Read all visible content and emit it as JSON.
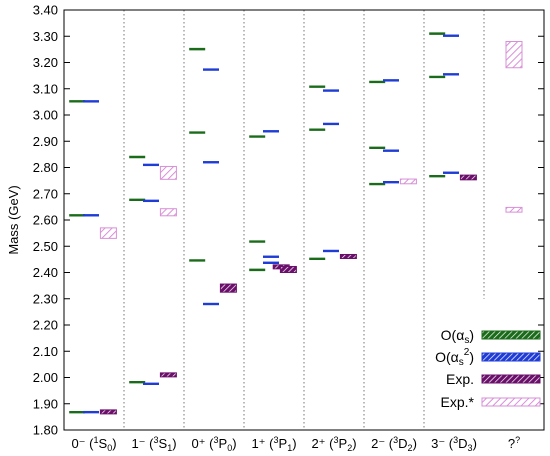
{
  "chart_data": {
    "type": "scatter",
    "ylabel": "Mass (GeV)",
    "ylim": [
      1.8,
      3.4
    ],
    "yticks": [
      "1.80",
      "1.90",
      "2.00",
      "2.10",
      "2.20",
      "2.30",
      "2.40",
      "2.50",
      "2.60",
      "2.70",
      "2.80",
      "2.90",
      "3.00",
      "3.10",
      "3.20",
      "3.30",
      "3.40"
    ],
    "categories": [
      {
        "parity": "0⁻",
        "pre": "(",
        "sup": "1",
        "letter": "S",
        "sub": "0",
        "post": ")"
      },
      {
        "parity": "1⁻",
        "pre": "(",
        "sup": "3",
        "letter": "S",
        "sub": "1",
        "post": ")"
      },
      {
        "parity": "0⁺",
        "pre": "(",
        "sup": "3",
        "letter": "P",
        "sub": "0",
        "post": ")"
      },
      {
        "parity": "1⁺",
        "pre": "(",
        "sup": "3",
        "letter": "P",
        "sub": "1",
        "post": ")"
      },
      {
        "parity": "2⁺",
        "pre": "(",
        "sup": "3",
        "letter": "P",
        "sub": "2",
        "post": ")"
      },
      {
        "parity": "2⁻",
        "pre": "(",
        "sup": "3",
        "letter": "D",
        "sub": "2",
        "post": ")"
      },
      {
        "parity": "3⁻",
        "pre": "(",
        "sup": "3",
        "letter": "D",
        "sub": "3",
        "post": ")"
      },
      {
        "parity": "?",
        "pre": "",
        "sup": "?",
        "letter": "",
        "sub": "",
        "post": ""
      }
    ],
    "grid": "vertical dotted separators between categories",
    "legend_position": "bottom-right",
    "series": [
      {
        "name": "O(αs)",
        "color": "#1a6b1a",
        "style": "line",
        "points": [
          {
            "cat": 0,
            "y": 1.868
          },
          {
            "cat": 0,
            "y": 2.618
          },
          {
            "cat": 0,
            "y": 3.052
          },
          {
            "cat": 1,
            "y": 1.982
          },
          {
            "cat": 1,
            "y": 2.677
          },
          {
            "cat": 1,
            "y": 2.84
          },
          {
            "cat": 2,
            "y": 2.446
          },
          {
            "cat": 2,
            "y": 2.933
          },
          {
            "cat": 2,
            "y": 3.251
          },
          {
            "cat": 3,
            "y": 2.41
          },
          {
            "cat": 3,
            "y": 2.518
          },
          {
            "cat": 3,
            "y": 2.918
          },
          {
            "cat": 4,
            "y": 2.452
          },
          {
            "cat": 4,
            "y": 2.944
          },
          {
            "cat": 4,
            "y": 3.108
          },
          {
            "cat": 5,
            "y": 2.737
          },
          {
            "cat": 5,
            "y": 2.875
          },
          {
            "cat": 5,
            "y": 3.126
          },
          {
            "cat": 6,
            "y": 2.767
          },
          {
            "cat": 6,
            "y": 3.145
          },
          {
            "cat": 6,
            "y": 3.31
          }
        ]
      },
      {
        "name": "O(αs²)",
        "color": "#1f3cd6",
        "style": "line",
        "points": [
          {
            "cat": 0,
            "y": 1.868
          },
          {
            "cat": 0,
            "y": 2.618
          },
          {
            "cat": 0,
            "y": 3.052
          },
          {
            "cat": 1,
            "y": 1.976
          },
          {
            "cat": 1,
            "y": 2.673
          },
          {
            "cat": 1,
            "y": 2.81
          },
          {
            "cat": 2,
            "y": 2.28
          },
          {
            "cat": 2,
            "y": 2.82
          },
          {
            "cat": 2,
            "y": 3.173
          },
          {
            "cat": 3,
            "y": 2.437
          },
          {
            "cat": 3,
            "y": 2.46
          },
          {
            "cat": 3,
            "y": 2.938
          },
          {
            "cat": 4,
            "y": 2.482
          },
          {
            "cat": 4,
            "y": 2.966
          },
          {
            "cat": 4,
            "y": 3.093
          },
          {
            "cat": 5,
            "y": 2.744
          },
          {
            "cat": 5,
            "y": 2.864
          },
          {
            "cat": 5,
            "y": 3.132
          },
          {
            "cat": 6,
            "y": 2.78
          },
          {
            "cat": 6,
            "y": 3.155
          },
          {
            "cat": 6,
            "y": 3.302
          }
        ]
      },
      {
        "name": "Exp.",
        "color": "#6a0f6a",
        "style": "box",
        "points": [
          {
            "cat": 0,
            "y": 1.869,
            "lo": 1.866,
            "hi": 1.872
          },
          {
            "cat": 1,
            "y": 2.01,
            "lo": 2.007,
            "hi": 2.013
          },
          {
            "cat": 2,
            "y": 2.343,
            "lo": 2.325,
            "hi": 2.356
          },
          {
            "cat": 3,
            "y": 2.42,
            "lo": 2.419,
            "hi": 2.424
          },
          {
            "cat": 3,
            "y": 2.412,
            "lo": 2.4,
            "hi": 2.423
          },
          {
            "cat": 4,
            "y": 2.461,
            "lo": 2.458,
            "hi": 2.464
          },
          {
            "cat": 6,
            "y": 2.763,
            "lo": 2.753,
            "hi": 2.771
          }
        ]
      },
      {
        "name": "Exp.*",
        "color": "#d98fd8",
        "style": "box",
        "points": [
          {
            "cat": 0,
            "y": 2.549,
            "lo": 2.53,
            "hi": 2.57
          },
          {
            "cat": 1,
            "y": 2.781,
            "lo": 2.755,
            "hi": 2.804
          },
          {
            "cat": 1,
            "y": 2.632,
            "lo": 2.616,
            "hi": 2.643
          },
          {
            "cat": 5,
            "y": 2.747,
            "lo": 2.738,
            "hi": 2.756
          },
          {
            "cat": 7,
            "y": 3.24,
            "lo": 3.18,
            "hi": 3.28
          },
          {
            "cat": 7,
            "y": 2.639,
            "lo": 2.63,
            "hi": 2.648
          }
        ]
      }
    ],
    "legend": [
      {
        "label": "O(α",
        "sub": "s",
        "sup": "",
        "tail": ")",
        "series": 0
      },
      {
        "label": "O(α",
        "sub": "s",
        "sup": "2",
        "tail": ")",
        "series": 1
      },
      {
        "label": "Exp.",
        "sub": "",
        "sup": "",
        "tail": "",
        "series": 2
      },
      {
        "label": "Exp.*",
        "sub": "",
        "sup": "",
        "tail": "",
        "series": 3
      }
    ]
  }
}
